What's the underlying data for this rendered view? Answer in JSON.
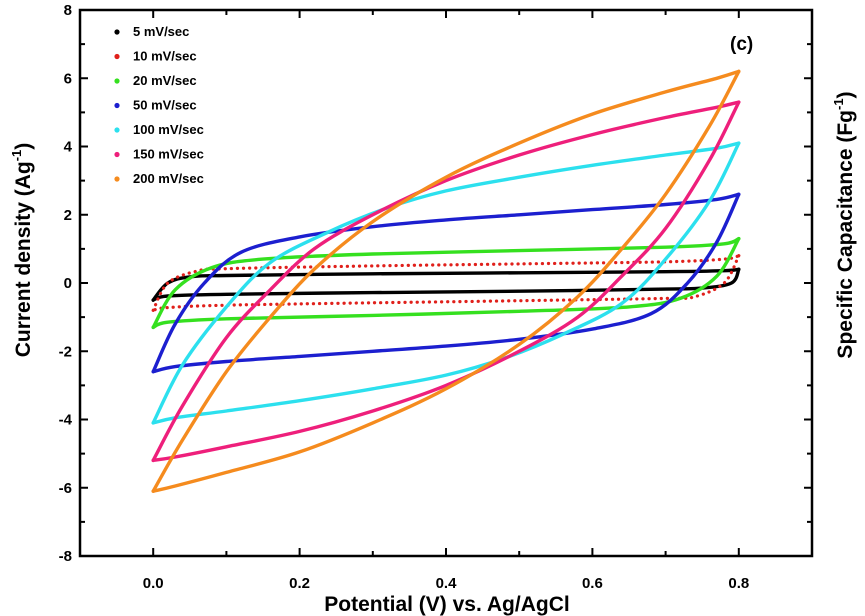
{
  "chart_data": {
    "type": "line",
    "panel_label": "(c)",
    "xlabel": "Potential (V) vs. Ag/AgCl",
    "ylabel": "Current density (Ag",
    "ylabel_sup": "-1",
    "ylabel_end": ")",
    "y2label": "Specific Capacitance (Fg",
    "y2label_sup": "-1",
    "y2label_end": ")",
    "xlim": [
      -0.1,
      0.9
    ],
    "ylim": [
      -8,
      8
    ],
    "x_ticks": [
      0.0,
      0.2,
      0.4,
      0.6,
      0.8
    ],
    "x_tick_labels": [
      "0.0",
      "0.2",
      "0.4",
      "0.6",
      "0.8"
    ],
    "y_ticks": [
      -8,
      -6,
      -4,
      -2,
      0,
      2,
      4,
      6,
      8
    ],
    "y_tick_labels": [
      "-8",
      "-6",
      "-4",
      "-2",
      "0",
      "2",
      "4",
      "6",
      "8"
    ],
    "legend_position": "top-left",
    "grid": false,
    "series": [
      {
        "name": "5 mV/sec",
        "color": "#000000",
        "style": "solid",
        "min": -0.5,
        "max": 0.4,
        "anodic": [
          [
            0.0,
            -0.5
          ],
          [
            0.02,
            0.0
          ],
          [
            0.05,
            0.18
          ],
          [
            0.1,
            0.22
          ],
          [
            0.3,
            0.27
          ],
          [
            0.5,
            0.3
          ],
          [
            0.7,
            0.33
          ],
          [
            0.78,
            0.36
          ],
          [
            0.8,
            0.4
          ]
        ],
        "cathodic": [
          [
            0.8,
            0.4
          ],
          [
            0.79,
            0.0
          ],
          [
            0.75,
            -0.15
          ],
          [
            0.7,
            -0.18
          ],
          [
            0.5,
            -0.24
          ],
          [
            0.3,
            -0.28
          ],
          [
            0.1,
            -0.33
          ],
          [
            0.02,
            -0.38
          ],
          [
            0.0,
            -0.5
          ]
        ]
      },
      {
        "name": "10 mV/sec",
        "color": "#e0201b",
        "style": "dotted",
        "min": -0.8,
        "max": 0.8,
        "anodic": [
          [
            0.0,
            -0.8
          ],
          [
            0.02,
            0.0
          ],
          [
            0.06,
            0.35
          ],
          [
            0.1,
            0.42
          ],
          [
            0.3,
            0.5
          ],
          [
            0.5,
            0.56
          ],
          [
            0.7,
            0.62
          ],
          [
            0.78,
            0.7
          ],
          [
            0.8,
            0.8
          ]
        ],
        "cathodic": [
          [
            0.8,
            0.8
          ],
          [
            0.78,
            0.0
          ],
          [
            0.74,
            -0.4
          ],
          [
            0.7,
            -0.45
          ],
          [
            0.5,
            -0.52
          ],
          [
            0.3,
            -0.58
          ],
          [
            0.1,
            -0.65
          ],
          [
            0.02,
            -0.72
          ],
          [
            0.0,
            -0.8
          ]
        ]
      },
      {
        "name": "20 mV/sec",
        "color": "#35e01f",
        "style": "solid",
        "min": -1.3,
        "max": 1.3,
        "anodic": [
          [
            0.0,
            -1.3
          ],
          [
            0.03,
            -0.2
          ],
          [
            0.08,
            0.45
          ],
          [
            0.15,
            0.7
          ],
          [
            0.3,
            0.85
          ],
          [
            0.5,
            0.95
          ],
          [
            0.7,
            1.05
          ],
          [
            0.78,
            1.15
          ],
          [
            0.8,
            1.3
          ]
        ],
        "cathodic": [
          [
            0.8,
            1.3
          ],
          [
            0.77,
            0.2
          ],
          [
            0.72,
            -0.45
          ],
          [
            0.65,
            -0.7
          ],
          [
            0.5,
            -0.83
          ],
          [
            0.3,
            -0.95
          ],
          [
            0.1,
            -1.05
          ],
          [
            0.02,
            -1.15
          ],
          [
            0.0,
            -1.3
          ]
        ]
      },
      {
        "name": "50 mV/sec",
        "color": "#1c1fcf",
        "style": "solid",
        "min": -2.6,
        "max": 2.6,
        "anodic": [
          [
            0.0,
            -2.6
          ],
          [
            0.03,
            -1.2
          ],
          [
            0.07,
            0.0
          ],
          [
            0.12,
            0.9
          ],
          [
            0.2,
            1.35
          ],
          [
            0.3,
            1.65
          ],
          [
            0.4,
            1.85
          ],
          [
            0.5,
            2.0
          ],
          [
            0.6,
            2.15
          ],
          [
            0.7,
            2.3
          ],
          [
            0.77,
            2.45
          ],
          [
            0.8,
            2.6
          ]
        ],
        "cathodic": [
          [
            0.8,
            2.6
          ],
          [
            0.77,
            1.2
          ],
          [
            0.73,
            0.0
          ],
          [
            0.68,
            -0.9
          ],
          [
            0.6,
            -1.35
          ],
          [
            0.5,
            -1.65
          ],
          [
            0.4,
            -1.85
          ],
          [
            0.3,
            -2.0
          ],
          [
            0.2,
            -2.15
          ],
          [
            0.1,
            -2.3
          ],
          [
            0.03,
            -2.45
          ],
          [
            0.0,
            -2.6
          ]
        ]
      },
      {
        "name": "100 mV/sec",
        "color": "#2ce0ee",
        "style": "solid",
        "min": -4.1,
        "max": 4.1,
        "anodic": [
          [
            0.0,
            -4.1
          ],
          [
            0.04,
            -2.4
          ],
          [
            0.1,
            -0.7
          ],
          [
            0.16,
            0.6
          ],
          [
            0.24,
            1.5
          ],
          [
            0.32,
            2.2
          ],
          [
            0.4,
            2.7
          ],
          [
            0.5,
            3.1
          ],
          [
            0.6,
            3.45
          ],
          [
            0.7,
            3.75
          ],
          [
            0.77,
            3.95
          ],
          [
            0.8,
            4.1
          ]
        ],
        "cathodic": [
          [
            0.8,
            4.1
          ],
          [
            0.76,
            2.4
          ],
          [
            0.7,
            0.7
          ],
          [
            0.64,
            -0.6
          ],
          [
            0.56,
            -1.5
          ],
          [
            0.48,
            -2.2
          ],
          [
            0.4,
            -2.7
          ],
          [
            0.3,
            -3.1
          ],
          [
            0.2,
            -3.45
          ],
          [
            0.1,
            -3.75
          ],
          [
            0.03,
            -3.95
          ],
          [
            0.0,
            -4.1
          ]
        ]
      },
      {
        "name": "150 mV/sec",
        "color": "#ee1f7b",
        "style": "solid",
        "min": -5.2,
        "max": 5.3,
        "anodic": [
          [
            0.0,
            -5.2
          ],
          [
            0.04,
            -3.6
          ],
          [
            0.1,
            -1.6
          ],
          [
            0.16,
            -0.2
          ],
          [
            0.22,
            1.0
          ],
          [
            0.3,
            2.0
          ],
          [
            0.4,
            3.0
          ],
          [
            0.5,
            3.75
          ],
          [
            0.6,
            4.35
          ],
          [
            0.7,
            4.85
          ],
          [
            0.77,
            5.15
          ],
          [
            0.8,
            5.3
          ]
        ],
        "cathodic": [
          [
            0.8,
            5.3
          ],
          [
            0.76,
            3.6
          ],
          [
            0.7,
            1.6
          ],
          [
            0.64,
            0.2
          ],
          [
            0.58,
            -1.0
          ],
          [
            0.5,
            -2.0
          ],
          [
            0.4,
            -3.0
          ],
          [
            0.3,
            -3.75
          ],
          [
            0.2,
            -4.35
          ],
          [
            0.1,
            -4.8
          ],
          [
            0.03,
            -5.1
          ],
          [
            0.0,
            -5.2
          ]
        ]
      },
      {
        "name": "200 mV/sec",
        "color": "#f58b1e",
        "style": "solid",
        "min": -6.1,
        "max": 6.2,
        "anodic": [
          [
            0.0,
            -6.1
          ],
          [
            0.04,
            -4.6
          ],
          [
            0.1,
            -2.6
          ],
          [
            0.16,
            -1.0
          ],
          [
            0.22,
            0.4
          ],
          [
            0.3,
            1.8
          ],
          [
            0.4,
            3.1
          ],
          [
            0.5,
            4.1
          ],
          [
            0.6,
            4.95
          ],
          [
            0.7,
            5.6
          ],
          [
            0.77,
            6.0
          ],
          [
            0.8,
            6.2
          ]
        ],
        "cathodic": [
          [
            0.8,
            6.2
          ],
          [
            0.76,
            4.6
          ],
          [
            0.7,
            2.6
          ],
          [
            0.64,
            1.0
          ],
          [
            0.58,
            -0.4
          ],
          [
            0.5,
            -1.8
          ],
          [
            0.4,
            -3.1
          ],
          [
            0.3,
            -4.1
          ],
          [
            0.2,
            -4.95
          ],
          [
            0.1,
            -5.55
          ],
          [
            0.03,
            -5.95
          ],
          [
            0.0,
            -6.1
          ]
        ]
      }
    ]
  }
}
